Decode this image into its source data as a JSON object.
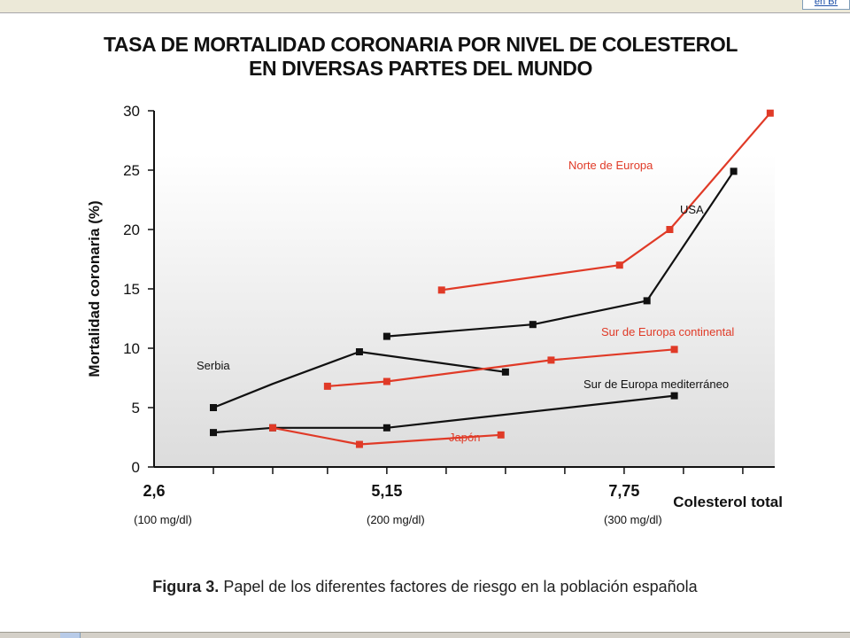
{
  "window": {
    "toolbar_link": "en Br"
  },
  "figure": {
    "title_line1": "TASA DE MORTALIDAD CORONARIA POR NIVEL DE COLESTEROL",
    "title_line2": "EN DIVERSAS PARTES DEL MUNDO",
    "caption_bold": "Figura 3.",
    "caption_rest": "Papel de los diferentes factores de riesgo en la población española"
  },
  "chart_data": {
    "type": "line",
    "title": "TASA DE MORTALIDAD CORONARIA POR NIVEL DE COLESTEROL EN DIVERSAS PARTES DEL MUNDO",
    "ylabel": "Mortalidad coronaria (%)",
    "xlabel": "Colesterol total",
    "ylim": [
      0,
      30
    ],
    "xlim": [
      2.6,
      9.4
    ],
    "yticks": [
      0,
      5,
      10,
      15,
      20,
      25,
      30
    ],
    "xtick_labels": [
      {
        "x": 2.6,
        "label": "2,6",
        "sub": "(100 mg/dl)"
      },
      {
        "x": 5.15,
        "label": "5,15",
        "sub": "(200 mg/dl)"
      },
      {
        "x": 7.75,
        "label": "7,75",
        "sub": "(300 mg/dl)"
      }
    ],
    "minor_ticks": [
      3.25,
      3.9,
      4.5,
      5.8,
      6.45,
      7.1,
      8.4,
      9.05
    ],
    "grid": false,
    "series": [
      {
        "name": "Norte de Europa",
        "color": "#e03a27",
        "x": [
          5.75,
          7.7,
          8.25,
          9.35
        ],
        "y": [
          14.9,
          17.0,
          20.0,
          29.8
        ]
      },
      {
        "name": "USA",
        "color": "#111111",
        "x": [
          5.15,
          6.75,
          8.0,
          8.95
        ],
        "y": [
          11.0,
          12.0,
          14.0,
          24.9
        ]
      },
      {
        "name": "Serbia",
        "color": "#111111",
        "x": [
          3.25,
          3.9,
          4.85,
          6.45
        ],
        "y": [
          5.0,
          7.0,
          9.7,
          8.0
        ],
        "marker_index": [
          0,
          2,
          3
        ]
      },
      {
        "name": "Sur de Europa continental",
        "color": "#e03a27",
        "x": [
          4.5,
          5.15,
          6.95,
          8.3
        ],
        "y": [
          6.8,
          7.2,
          9.0,
          9.9
        ]
      },
      {
        "name": "Sur de Europa mediterráneo",
        "color": "#111111",
        "x": [
          3.25,
          3.9,
          5.15,
          8.3
        ],
        "y": [
          2.9,
          3.3,
          3.3,
          6.0
        ]
      },
      {
        "name": "Japón",
        "color": "#e03a27",
        "x": [
          3.9,
          4.85,
          6.4
        ],
        "y": [
          3.3,
          1.9,
          2.7
        ]
      }
    ]
  }
}
